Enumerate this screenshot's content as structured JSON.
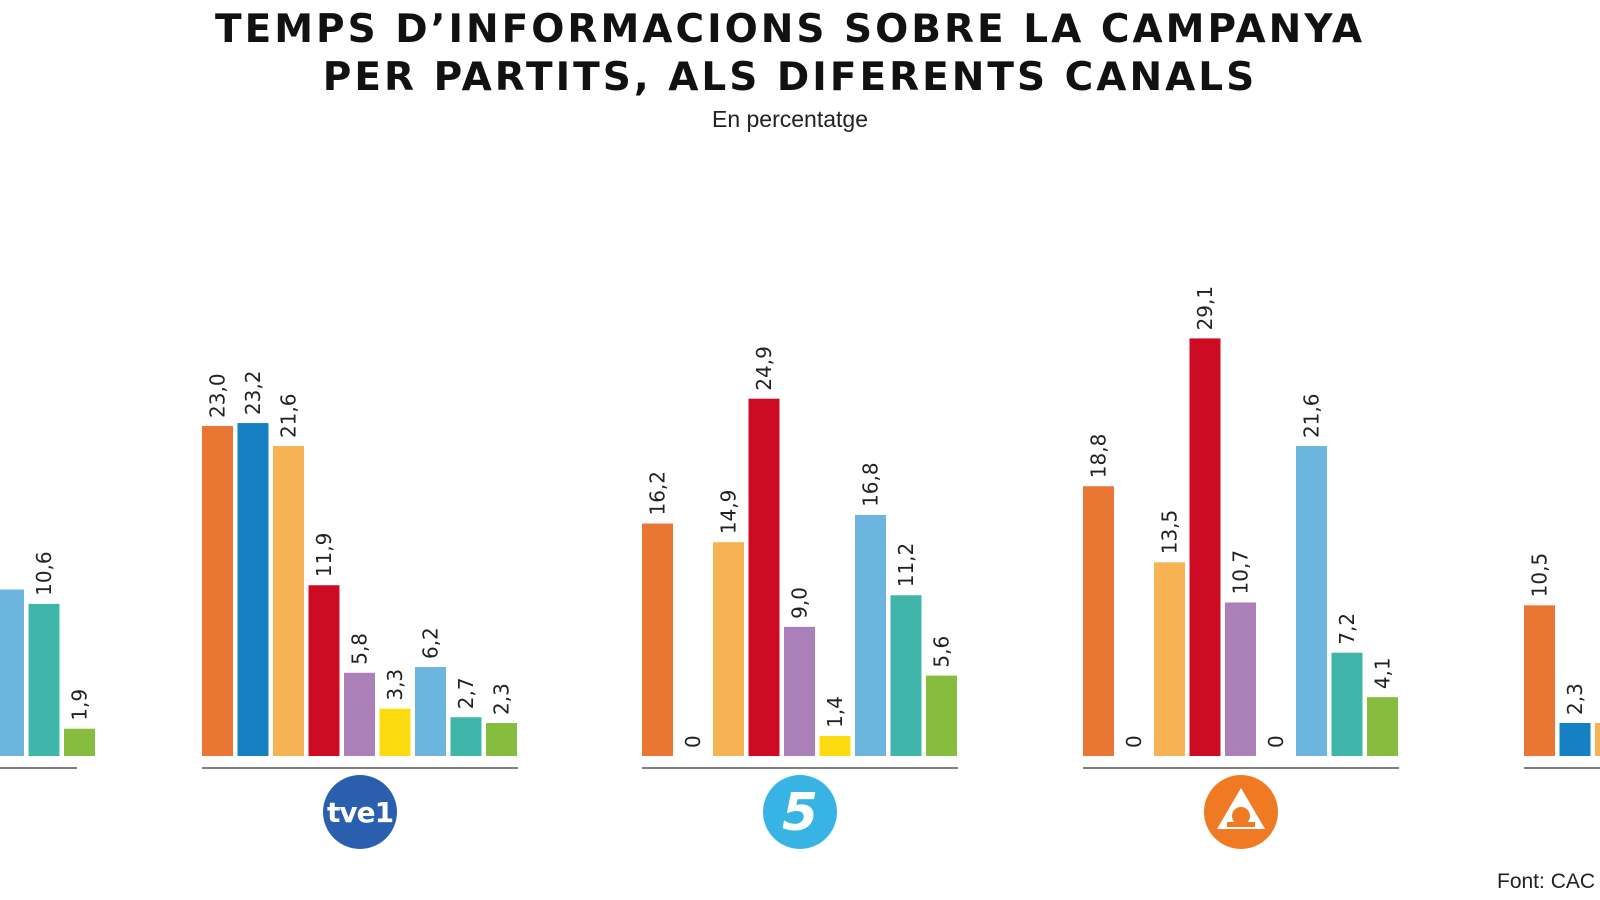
{
  "colors": {
    "party1": "#ea7633",
    "party2": "#1580c3",
    "party3": "#f7b253",
    "party4": "#cd0c24",
    "party5": "#ab80b9",
    "party6": "#fcdc10",
    "party7": "#6cb5df",
    "party8": "#3fb6a9",
    "party9": "#86bd3f",
    "axis": "#555555",
    "tve1_logo": "#2a5fb0",
    "cuatro_logo": "#37b4e4",
    "antena3_logo": "#ef7a23"
  },
  "chart_data": {
    "type": "bar",
    "title": "TEMPS D’INFORMACIONS SOBRE LA CAMPANYA PER PARTITS, ALS DIFERENTS CANALS",
    "title_lines": [
      "TEMPS D’INFORMACIONS SOBRE LA CAMPANYA",
      "PER PARTITS, ALS DIFERENTS CANALS"
    ],
    "subtitle": "En percentatge",
    "source": "Font: CAC",
    "xlabel": "",
    "ylabel": "",
    "ylim": [
      0,
      30
    ],
    "grid": false,
    "legend": "none",
    "groups": [
      {
        "name": "partial-left",
        "logo": "",
        "bars": [
          {
            "color_key": "party7",
            "value": 11.6,
            "label": ""
          },
          {
            "color_key": "party8",
            "value": 10.6,
            "label": "10,6"
          },
          {
            "color_key": "party9",
            "value": 1.9,
            "label": "1,9"
          }
        ]
      },
      {
        "name": "tve1",
        "logo": "tve1",
        "bars": [
          {
            "color_key": "party1",
            "value": 23.0,
            "label": "23,0"
          },
          {
            "color_key": "party2",
            "value": 23.2,
            "label": "23,2"
          },
          {
            "color_key": "party3",
            "value": 21.6,
            "label": "21,6"
          },
          {
            "color_key": "party4",
            "value": 11.9,
            "label": "11,9"
          },
          {
            "color_key": "party5",
            "value": 5.8,
            "label": "5,8"
          },
          {
            "color_key": "party6",
            "value": 3.3,
            "label": "3,3"
          },
          {
            "color_key": "party7",
            "value": 6.2,
            "label": "6,2"
          },
          {
            "color_key": "party8",
            "value": 2.7,
            "label": "2,7"
          },
          {
            "color_key": "party9",
            "value": 2.3,
            "label": "2,3"
          }
        ]
      },
      {
        "name": "cuatro",
        "logo": "cuatro",
        "bars": [
          {
            "color_key": "party1",
            "value": 16.2,
            "label": "16,2"
          },
          {
            "color_key": "party2",
            "value": 0,
            "label": "0"
          },
          {
            "color_key": "party3",
            "value": 14.9,
            "label": "14,9"
          },
          {
            "color_key": "party4",
            "value": 24.9,
            "label": "24,9"
          },
          {
            "color_key": "party5",
            "value": 9.0,
            "label": "9,0"
          },
          {
            "color_key": "party6",
            "value": 1.4,
            "label": "1,4"
          },
          {
            "color_key": "party7",
            "value": 16.8,
            "label": "16,8"
          },
          {
            "color_key": "party8",
            "value": 11.2,
            "label": "11,2"
          },
          {
            "color_key": "party9",
            "value": 5.6,
            "label": "5,6"
          }
        ]
      },
      {
        "name": "antena3",
        "logo": "antena3",
        "bars": [
          {
            "color_key": "party1",
            "value": 18.8,
            "label": "18,8"
          },
          {
            "color_key": "party2",
            "value": 0,
            "label": "0"
          },
          {
            "color_key": "party3",
            "value": 13.5,
            "label": "13,5"
          },
          {
            "color_key": "party4",
            "value": 29.1,
            "label": "29,1"
          },
          {
            "color_key": "party5",
            "value": 10.7,
            "label": "10,7"
          },
          {
            "color_key": "party6",
            "value": 0,
            "label": "0"
          },
          {
            "color_key": "party7",
            "value": 21.6,
            "label": "21,6"
          },
          {
            "color_key": "party8",
            "value": 7.2,
            "label": "7,2"
          },
          {
            "color_key": "party9",
            "value": 4.1,
            "label": "4,1"
          }
        ]
      },
      {
        "name": "partial-right",
        "logo": "",
        "bars": [
          {
            "color_key": "party1",
            "value": 10.5,
            "label": "10,5"
          },
          {
            "color_key": "party2",
            "value": 2.3,
            "label": "2,3"
          },
          {
            "color_key": "party3",
            "value": 2.3,
            "label": ""
          }
        ]
      }
    ]
  },
  "logos": {
    "tve1": {
      "text": "tve1"
    },
    "cuatro": {
      "text": "5"
    },
    "antena3": {
      "text": "A"
    }
  }
}
